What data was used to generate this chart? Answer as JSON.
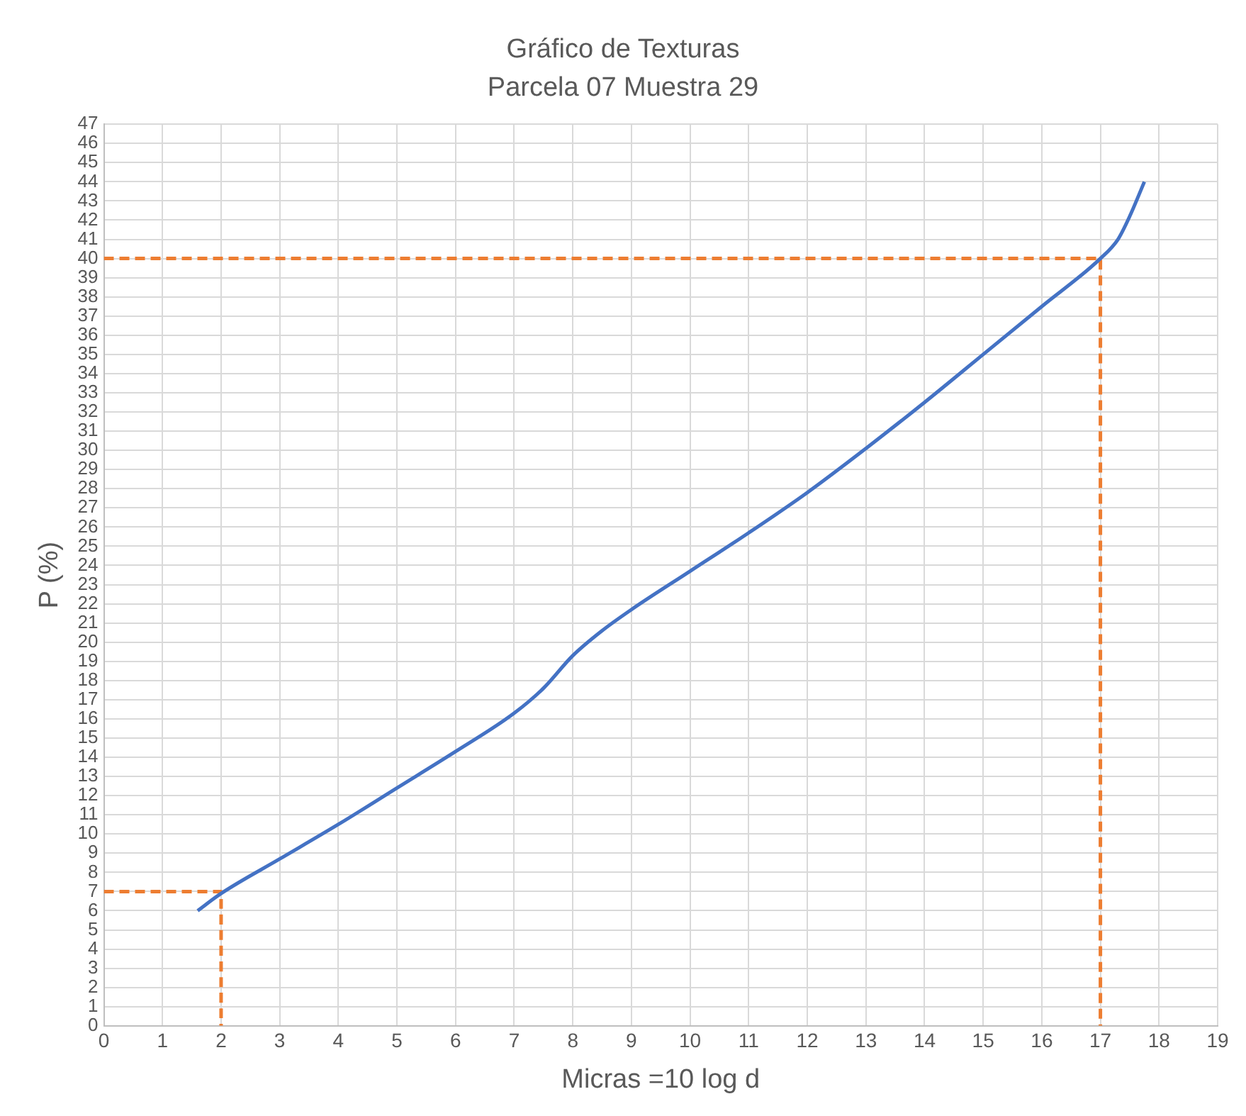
{
  "chart_data": {
    "type": "line",
    "title": "Gráfico de Texturas",
    "subtitle": "Parcela 07 Muestra 29",
    "xlabel": "Micras =10 log d",
    "ylabel": "P (%)",
    "xlim": [
      0,
      19
    ],
    "xticks": [
      0,
      1,
      2,
      3,
      4,
      5,
      6,
      7,
      8,
      9,
      10,
      11,
      12,
      13,
      14,
      15,
      16,
      17,
      18,
      19
    ],
    "ylim": [
      0,
      47
    ],
    "yticks": [
      0,
      1,
      2,
      3,
      4,
      5,
      6,
      7,
      8,
      9,
      10,
      11,
      12,
      13,
      14,
      15,
      16,
      17,
      18,
      19,
      20,
      21,
      22,
      23,
      24,
      25,
      26,
      27,
      28,
      29,
      30,
      31,
      32,
      33,
      34,
      35,
      36,
      37,
      38,
      39,
      40,
      41,
      42,
      43,
      44,
      45,
      46,
      47
    ],
    "grid": true,
    "legend": false,
    "marker": "none",
    "series": [
      {
        "color": "#4472c4",
        "line_style": "solid",
        "x": [
          1.6,
          2,
          3,
          4,
          5,
          6,
          7,
          7.5,
          8,
          8.5,
          9,
          10,
          11,
          12,
          13,
          14,
          15,
          16,
          17,
          17.3,
          17.5,
          17.75
        ],
        "values": [
          6,
          6.9,
          8.7,
          10.5,
          12.4,
          14.3,
          16.3,
          17.6,
          19.3,
          20.6,
          21.7,
          23.7,
          25.7,
          27.8,
          30.1,
          32.5,
          35,
          37.5,
          40,
          41,
          42.2,
          44
        ]
      },
      {
        "color": "#ed7d31",
        "line_style": "dashed",
        "x": [
          0,
          2,
          2
        ],
        "values": [
          7,
          7,
          0
        ]
      },
      {
        "color": "#ed7d31",
        "line_style": "dashed",
        "x": [
          0,
          17,
          17
        ],
        "values": [
          40,
          40,
          0
        ]
      }
    ]
  }
}
